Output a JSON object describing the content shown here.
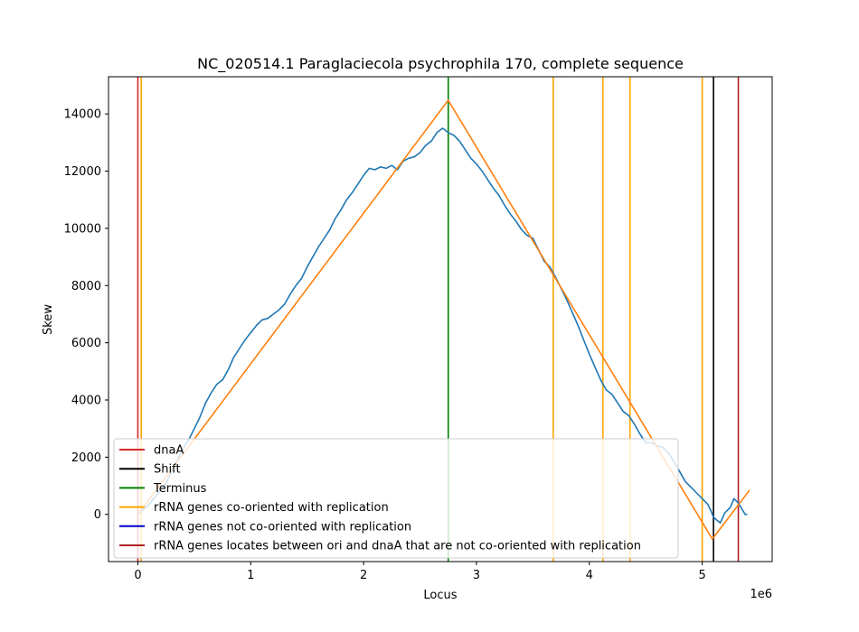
{
  "chart_data": {
    "type": "line",
    "title": "NC_020514.1 Paraglaciecola psychrophila 170, complete sequence",
    "xlabel": "Locus",
    "ylabel": "Skew",
    "x_offset_label": "1e6",
    "xlim": [
      -0.26,
      5.62
    ],
    "ylim": [
      -1650,
      15300
    ],
    "x_ticks": [
      0,
      1,
      2,
      3,
      4,
      5
    ],
    "y_ticks": [
      0,
      2000,
      4000,
      6000,
      8000,
      10000,
      12000,
      14000
    ],
    "x_tick_labels": [
      "0",
      "1",
      "2",
      "3",
      "4",
      "5"
    ],
    "y_tick_labels": [
      "0",
      "2000",
      "4000",
      "6000",
      "8000",
      "10000",
      "12000",
      "14000"
    ],
    "grid": false,
    "legend_position": "lower-left",
    "series": [
      {
        "color": "#1f77b4",
        "x": [
          0,
          0.05,
          0.1,
          0.15,
          0.2,
          0.25,
          0.3,
          0.35,
          0.4,
          0.45,
          0.5,
          0.55,
          0.6,
          0.65,
          0.7,
          0.75,
          0.8,
          0.85,
          0.9,
          0.95,
          1.0,
          1.05,
          1.1,
          1.15,
          1.2,
          1.25,
          1.3,
          1.35,
          1.4,
          1.45,
          1.5,
          1.55,
          1.6,
          1.65,
          1.7,
          1.75,
          1.8,
          1.85,
          1.9,
          1.95,
          2.0,
          2.05,
          2.1,
          2.15,
          2.2,
          2.25,
          2.3,
          2.35,
          2.4,
          2.45,
          2.5,
          2.55,
          2.6,
          2.65,
          2.7,
          2.75,
          2.8,
          2.85,
          2.9,
          2.95,
          3.0,
          3.05,
          3.1,
          3.15,
          3.2,
          3.25,
          3.3,
          3.35,
          3.4,
          3.45,
          3.5,
          3.55,
          3.6,
          3.65,
          3.7,
          3.75,
          3.8,
          3.85,
          3.9,
          3.95,
          4.0,
          4.05,
          4.1,
          4.15,
          4.2,
          4.25,
          4.3,
          4.35,
          4.4,
          4.45,
          4.5,
          4.55,
          4.6,
          4.65,
          4.7,
          4.75,
          4.8,
          4.85,
          4.9,
          4.95,
          5.0,
          5.05,
          5.08,
          5.1,
          5.13,
          5.16,
          5.2,
          5.25,
          5.28,
          5.32,
          5.35,
          5.38,
          5.4
        ],
        "y": [
          0,
          180,
          350,
          600,
          850,
          1100,
          1500,
          1900,
          2300,
          2600,
          3000,
          3400,
          3900,
          4250,
          4550,
          4700,
          5050,
          5500,
          5800,
          6100,
          6350,
          6600,
          6800,
          6850,
          7000,
          7150,
          7350,
          7700,
          8000,
          8250,
          8650,
          9000,
          9350,
          9650,
          9950,
          10350,
          10650,
          11000,
          11250,
          11550,
          11850,
          12100,
          12050,
          12150,
          12100,
          12200,
          12050,
          12350,
          12450,
          12500,
          12650,
          12900,
          13050,
          13350,
          13500,
          13350,
          13250,
          13050,
          12750,
          12450,
          12250,
          12000,
          11700,
          11400,
          11150,
          10800,
          10500,
          10250,
          9950,
          9750,
          9650,
          9250,
          8850,
          8650,
          8300,
          7900,
          7500,
          7050,
          6600,
          6100,
          5600,
          5150,
          4700,
          4350,
          4200,
          3900,
          3600,
          3450,
          3150,
          2800,
          2500,
          2500,
          2400,
          2350,
          2150,
          1850,
          1500,
          1150,
          950,
          750,
          550,
          350,
          100,
          -100,
          -200,
          -300,
          50,
          250,
          550,
          400,
          200,
          0,
          0
        ]
      },
      {
        "color": "#ff7f0e",
        "x": [
          0,
          2.75,
          5.09,
          5.42
        ],
        "y": [
          0,
          14480,
          -860,
          850
        ]
      }
    ],
    "vertical_lines": [
      {
        "x": 0.0,
        "color": "#d62728"
      },
      {
        "x": 0.03,
        "color": "#ffa500"
      },
      {
        "x": 2.75,
        "color": "#008000"
      },
      {
        "x": 3.68,
        "color": "#ffa500"
      },
      {
        "x": 4.12,
        "color": "#ffa500"
      },
      {
        "x": 4.36,
        "color": "#ffa500"
      },
      {
        "x": 5.0,
        "color": "#ffa500"
      },
      {
        "x": 5.1,
        "color": "#000000"
      },
      {
        "x": 5.32,
        "color": "#b22222"
      }
    ],
    "legend": [
      {
        "label": "dnaA",
        "color": "#d62728"
      },
      {
        "label": "Shift",
        "color": "#000000"
      },
      {
        "label": "Terminus",
        "color": "#008000"
      },
      {
        "label": "rRNA genes co-oriented with replication",
        "color": "#ffa500"
      },
      {
        "label": "rRNA genes not co-oriented with replication",
        "color": "#0000cd"
      },
      {
        "label": "rRNA genes locates between ori and dnaA that are not co-oriented with replication",
        "color": "#b22222"
      }
    ]
  }
}
